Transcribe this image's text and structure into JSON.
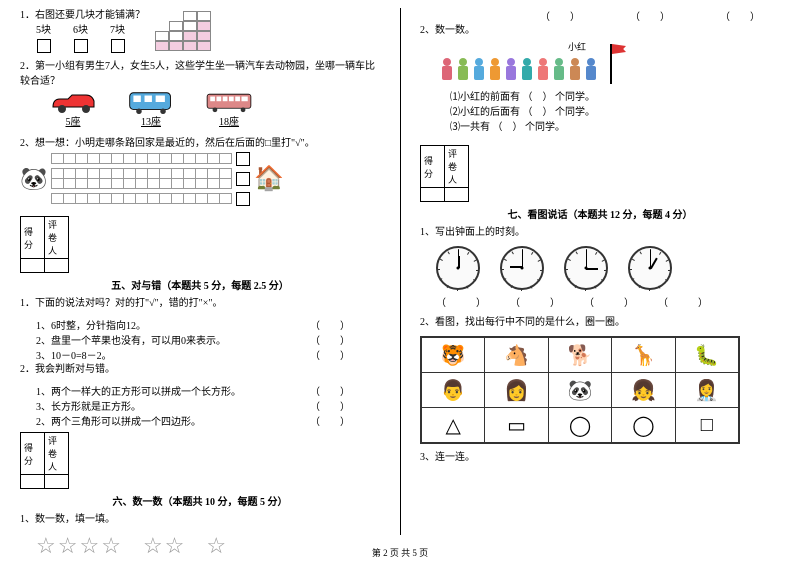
{
  "left": {
    "q1": {
      "prompt": "1．右图还要几块才能铺满？",
      "opts": [
        "5块",
        "6块",
        "7块"
      ]
    },
    "q2": {
      "prompt": "2．第一小组有男生7人，女生5人，这些学生坐一辆汽车去动物园，坐哪一辆车比较合适？",
      "cars": [
        "5座",
        "13座",
        "18座"
      ]
    },
    "q3": {
      "prompt": "2、想一想：小明走哪条路回家是最近的，然后在后面的□里打\"√\"。"
    },
    "sec5": {
      "title": "五、对与错（本题共 5 分，每题 2.5 分）",
      "p1": "1．下面的说法对吗？对的打\"√\"，错的打\"×\"。",
      "items1": [
        "1、6时整，分针指向12。",
        "2、盘里一个苹果也没有，可以用0来表示。",
        "3、10－0=8－2。"
      ],
      "p2": "2．我会判断对与错。",
      "items2": [
        "1、两个一样大的正方形可以拼成一个长方形。",
        "3、长方形就是正方形。",
        "2、两个三角形可以拼成一个四边形。"
      ]
    },
    "sec6": {
      "title": "六、数一数（本题共 10 分，每题 5 分）",
      "p1": "1、数一数，填一填。"
    }
  },
  "right": {
    "top_parens": [
      "（　　）",
      "（　　）",
      "（　　）"
    ],
    "q2": {
      "prompt": "2、数一数。",
      "xh": "小红",
      "sub": [
        "⑴小红的前面有 （　） 个同学。",
        "⑵小红的后面有 （　） 个同学。",
        "⑶一共有 （　） 个同学。"
      ]
    },
    "sec7": {
      "title": "七、看图说话（本题共 12 分，每题 4 分）",
      "p1": "1、写出钟面上的时刻。",
      "clock_blanks": [
        "（　　　）",
        "（　　　）",
        "（　　　）",
        "（　　　）"
      ],
      "p2": "2、看图，找出每行中不同的是什么，圈一圈。"
    },
    "q3": "3、连一连。"
  },
  "score": {
    "a": "得分",
    "b": "评卷人"
  },
  "footer": "第 2 页 共 5 页",
  "colors": {
    "queue": [
      "#d67",
      "#8b5",
      "#5ad",
      "#e93",
      "#97d",
      "#3aa",
      "#e77",
      "#6b8",
      "#c85",
      "#58c"
    ]
  },
  "clocks": [
    {
      "h": -90,
      "m": -90
    },
    {
      "h": 180,
      "m": -90
    },
    {
      "h": 0,
      "m": -90
    },
    {
      "h": -60,
      "m": -90
    }
  ],
  "odd_rows": [
    [
      "🐯",
      "🐴",
      "🐕",
      "🦒",
      "🐛"
    ],
    [
      "👨",
      "👩",
      "🐼",
      "👧",
      "👩‍⚕️"
    ],
    [
      "△",
      "▭",
      "◯",
      "◯",
      "□"
    ]
  ]
}
